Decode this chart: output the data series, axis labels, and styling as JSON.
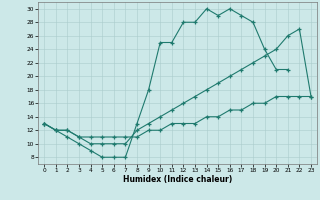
{
  "xlabel": "Humidex (Indice chaleur)",
  "bg_color": "#cce8e8",
  "line_color": "#1f7a6e",
  "xlim": [
    -0.5,
    23.5
  ],
  "ylim": [
    7,
    31
  ],
  "xticks": [
    0,
    1,
    2,
    3,
    4,
    5,
    6,
    7,
    8,
    9,
    10,
    11,
    12,
    13,
    14,
    15,
    16,
    17,
    18,
    19,
    20,
    21,
    22,
    23
  ],
  "yticks": [
    8,
    10,
    12,
    14,
    16,
    18,
    20,
    22,
    24,
    26,
    28,
    30
  ],
  "line1_x": [
    0,
    1,
    2,
    3,
    4,
    5,
    6,
    7,
    8,
    9,
    10,
    11,
    12,
    13,
    14,
    15,
    16,
    17,
    18,
    19,
    20,
    21
  ],
  "line1_y": [
    13,
    12,
    11,
    10,
    9,
    8,
    8,
    8,
    13,
    18,
    25,
    25,
    28,
    28,
    30,
    29,
    30,
    29,
    28,
    24,
    21,
    21
  ],
  "line2_x": [
    0,
    1,
    2,
    3,
    4,
    5,
    6,
    7,
    8,
    9,
    10,
    11,
    12,
    13,
    14,
    15,
    16,
    17,
    18,
    19,
    20,
    21,
    22,
    23
  ],
  "line2_y": [
    13,
    12,
    12,
    11,
    10,
    10,
    10,
    10,
    12,
    13,
    14,
    15,
    16,
    17,
    18,
    19,
    20,
    21,
    22,
    23,
    24,
    26,
    27,
    17
  ],
  "line3_x": [
    0,
    1,
    2,
    3,
    4,
    5,
    6,
    7,
    8,
    9,
    10,
    11,
    12,
    13,
    14,
    15,
    16,
    17,
    18,
    19,
    20,
    21,
    22,
    23
  ],
  "line3_y": [
    13,
    12,
    12,
    11,
    11,
    11,
    11,
    11,
    11,
    12,
    12,
    13,
    13,
    13,
    14,
    14,
    15,
    15,
    16,
    16,
    17,
    17,
    17,
    17
  ]
}
